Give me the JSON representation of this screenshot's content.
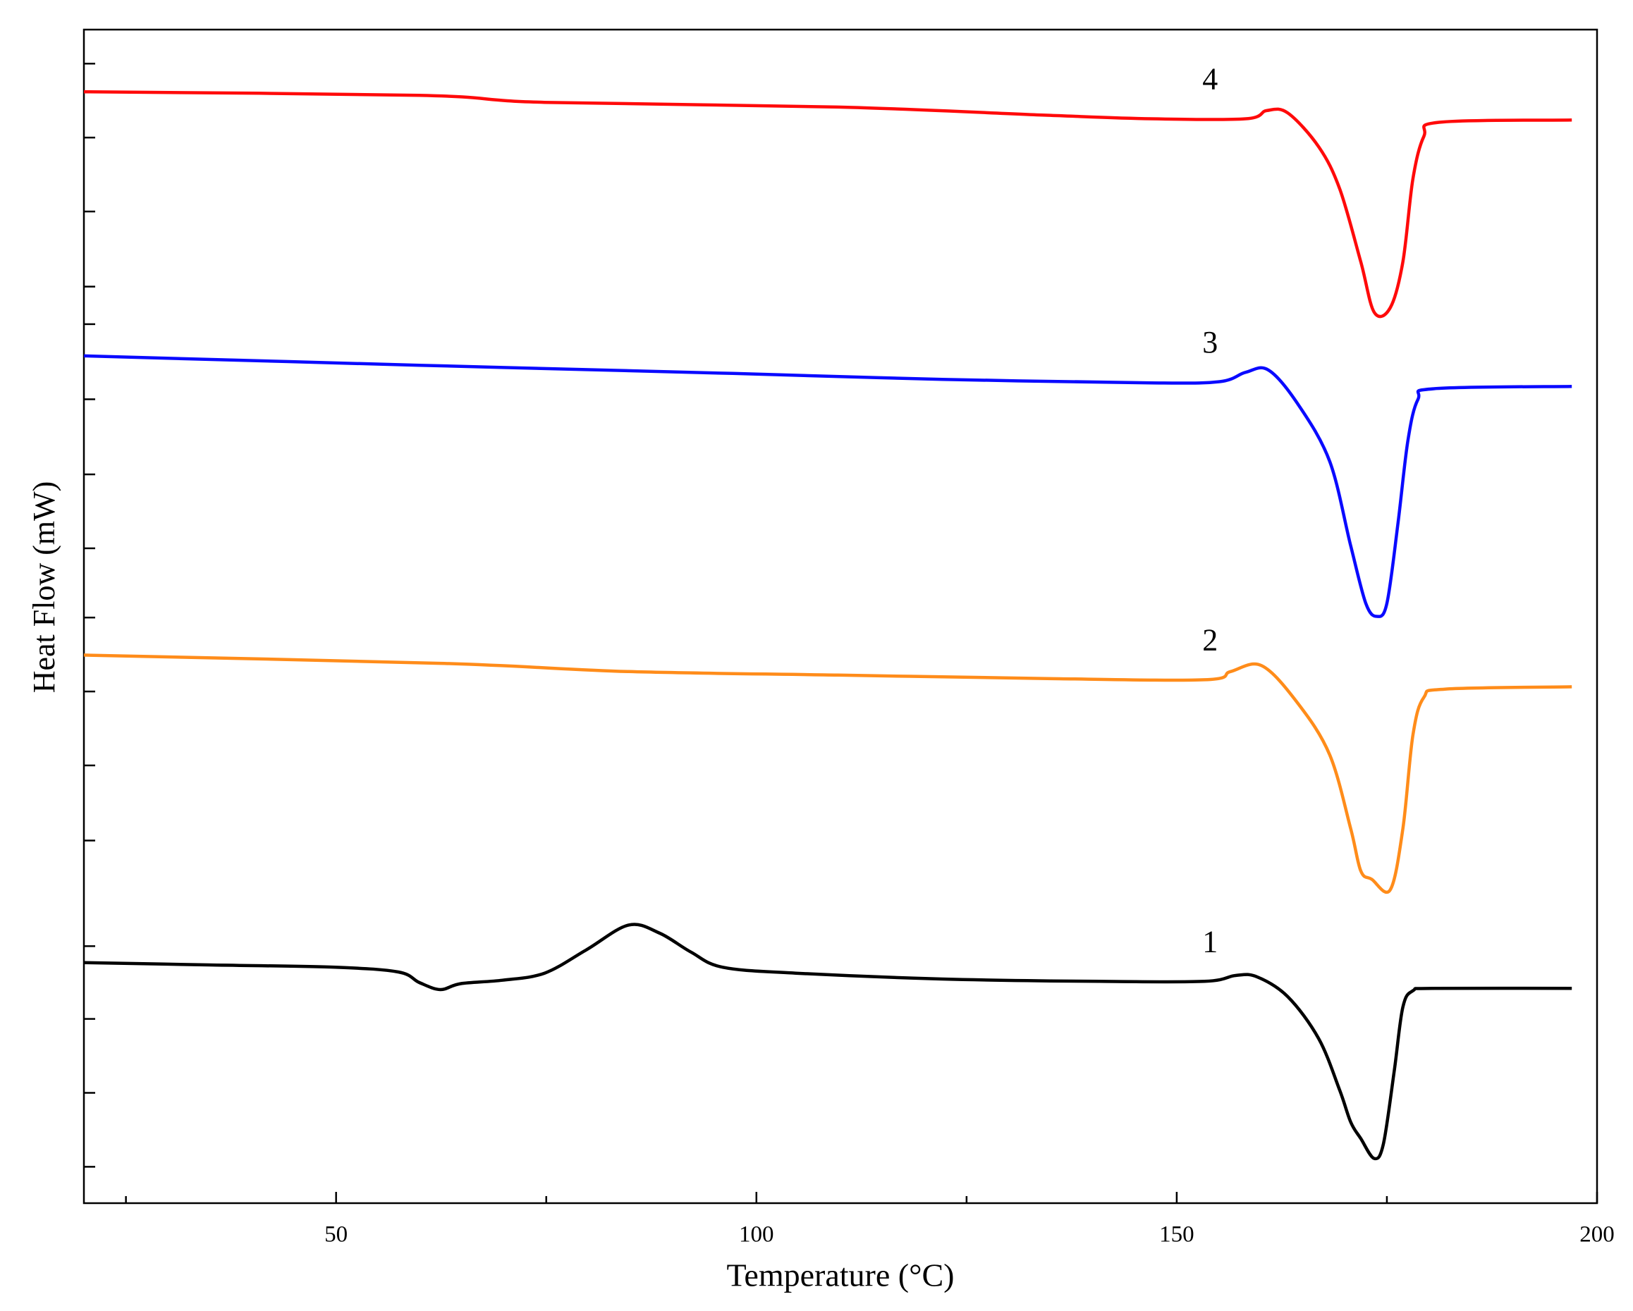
{
  "chart_data": {
    "type": "line",
    "xlabel": "Temperature (°C)",
    "ylabel": "Heat Flow (mW)",
    "xlim": [
      20,
      200
    ],
    "xticks": [
      50,
      100,
      150,
      200
    ],
    "xminor_ticks": [
      25,
      75,
      125,
      175
    ],
    "ylim": [
      0,
      100
    ],
    "yticks": [
      3.1,
      9.4,
      15.7,
      21.9,
      30.9,
      37.3,
      43.6,
      49.9,
      55.8,
      62.1,
      68.5,
      74.9,
      78.1,
      84.5,
      90.8,
      97.1
    ],
    "ytick_labels": false,
    "grid": false,
    "series": [
      {
        "name": "1",
        "color": "#000000",
        "x": [
          20.0,
          34.9,
          49.9,
          57.4,
          59.9,
          62.4,
          64.8,
          69.8,
          74.8,
          79.8,
          84.8,
          88.5,
          92.2,
          96.0,
          104.7,
          122.1,
          140.8,
          153.3,
          157.0,
          159.5,
          163.2,
          166.9,
          169.4,
          170.7,
          171.9,
          173.5,
          174.6,
          175.9,
          176.9,
          178.1,
          180.6,
          197.0
        ],
        "values": [
          20.5,
          20.3,
          20.1,
          19.7,
          18.8,
          18.2,
          18.7,
          19.0,
          19.6,
          21.6,
          23.7,
          23.0,
          21.4,
          20.1,
          19.6,
          19.1,
          18.9,
          18.9,
          19.4,
          19.3,
          17.6,
          14.0,
          9.6,
          6.9,
          5.5,
          3.8,
          5.1,
          11.4,
          16.7,
          18.1,
          18.3,
          18.3
        ]
      },
      {
        "name": "2",
        "color": "#ff8c1a",
        "x": [
          20.0,
          62.4,
          84.8,
          109.7,
          134.6,
          153.3,
          156.4,
          160.1,
          164.4,
          168.2,
          170.7,
          171.9,
          173.2,
          175.4,
          176.9,
          178.1,
          179.4,
          181.9,
          197.0
        ],
        "values": [
          46.7,
          46.0,
          45.3,
          45.0,
          44.7,
          44.6,
          45.3,
          45.8,
          42.6,
          38.2,
          31.9,
          28.3,
          27.6,
          26.7,
          31.9,
          39.9,
          43.1,
          43.8,
          44.0
        ]
      },
      {
        "name": "3",
        "color": "#0a0aff",
        "x": [
          20.0,
          59.9,
          97.2,
          122.1,
          147.0,
          155.1,
          158.2,
          160.9,
          164.4,
          168.2,
          170.7,
          172.5,
          173.8,
          175.0,
          176.3,
          177.5,
          178.7,
          180.6,
          197.0
        ],
        "values": [
          72.2,
          71.4,
          70.7,
          70.2,
          69.9,
          70.0,
          70.8,
          71.0,
          68.1,
          63.2,
          56.0,
          51.1,
          50.0,
          51.1,
          57.8,
          65.0,
          68.5,
          69.4,
          69.6
        ]
      },
      {
        "name": "4",
        "color": "#ff0a0a",
        "x": [
          20.0,
          59.9,
          74.8,
          109.7,
          134.6,
          147.0,
          158.2,
          160.7,
          163.2,
          166.9,
          169.4,
          171.9,
          173.5,
          175.4,
          176.9,
          178.1,
          179.4,
          181.2,
          197.0
        ],
        "values": [
          94.7,
          94.4,
          93.8,
          93.4,
          92.7,
          92.4,
          92.4,
          93.1,
          92.9,
          90.0,
          86.4,
          80.2,
          75.9,
          76.3,
          80.2,
          87.3,
          90.9,
          92.1,
          92.3
        ]
      }
    ]
  }
}
